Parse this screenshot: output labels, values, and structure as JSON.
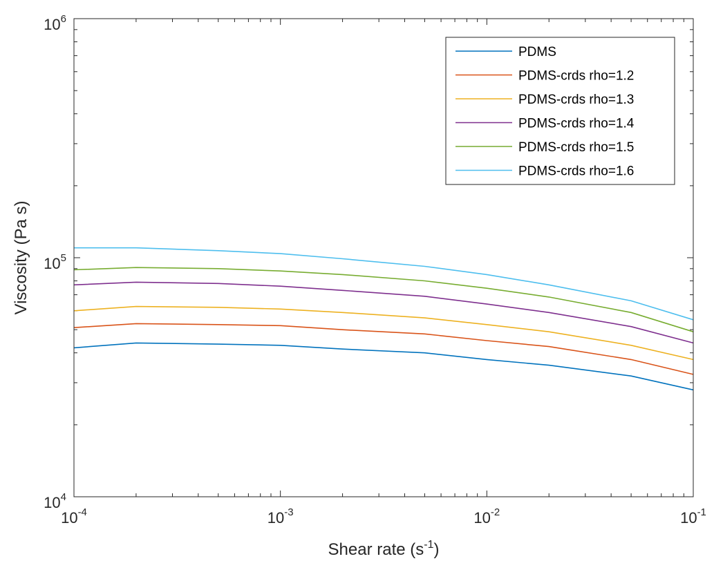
{
  "chart_data": {
    "type": "line",
    "xlabel": "Shear rate (s",
    "xlabel_exponent": "-1",
    "xlabel_suffix": ")",
    "ylabel": "Viscosity (Pa s)",
    "x_scale": "log",
    "y_scale": "log",
    "xlim": [
      0.0001,
      0.1
    ],
    "ylim": [
      10000,
      1000000
    ],
    "grid": false,
    "legend_position": "top-right",
    "x_ticks": [
      {
        "value": 0.0001,
        "base": "10",
        "exp": "-4"
      },
      {
        "value": 0.001,
        "base": "10",
        "exp": "-3"
      },
      {
        "value": 0.01,
        "base": "10",
        "exp": "-2"
      },
      {
        "value": 0.1,
        "base": "10",
        "exp": "-1"
      }
    ],
    "y_ticks": [
      {
        "value": 10000,
        "base": "10",
        "exp": "4"
      },
      {
        "value": 100000,
        "base": "10",
        "exp": "5"
      },
      {
        "value": 1000000,
        "base": "10",
        "exp": "6"
      }
    ],
    "x": [
      0.0001,
      0.0002,
      0.0005,
      0.001,
      0.002,
      0.005,
      0.01,
      0.02,
      0.05,
      0.1
    ],
    "series": [
      {
        "name": "PDMS",
        "color": "#0072BD",
        "values": [
          42000,
          44000,
          43500,
          43000,
          41500,
          40000,
          37500,
          35500,
          32000,
          28000
        ]
      },
      {
        "name": "PDMS-crds rho=1.2",
        "color": "#D95319",
        "values": [
          51000,
          53000,
          52500,
          52000,
          50000,
          48000,
          45000,
          42500,
          37500,
          32500
        ]
      },
      {
        "name": "PDMS-crds rho=1.3",
        "color": "#EDB120",
        "values": [
          60000,
          62500,
          62000,
          61000,
          59000,
          56000,
          52500,
          49000,
          43000,
          37500
        ]
      },
      {
        "name": "PDMS-crds rho=1.4",
        "color": "#7E2F8E",
        "values": [
          77000,
          79000,
          78000,
          76000,
          73000,
          69000,
          64000,
          59000,
          51500,
          44000
        ]
      },
      {
        "name": "PDMS-crds rho=1.5",
        "color": "#77AC30",
        "values": [
          89000,
          91000,
          90000,
          88000,
          85000,
          80000,
          74500,
          68500,
          59000,
          49000
        ]
      },
      {
        "name": "PDMS-crds rho=1.6",
        "color": "#4DBEEE",
        "values": [
          110000,
          110000,
          107000,
          104000,
          99000,
          92000,
          85000,
          77000,
          66000,
          55000
        ]
      }
    ]
  }
}
